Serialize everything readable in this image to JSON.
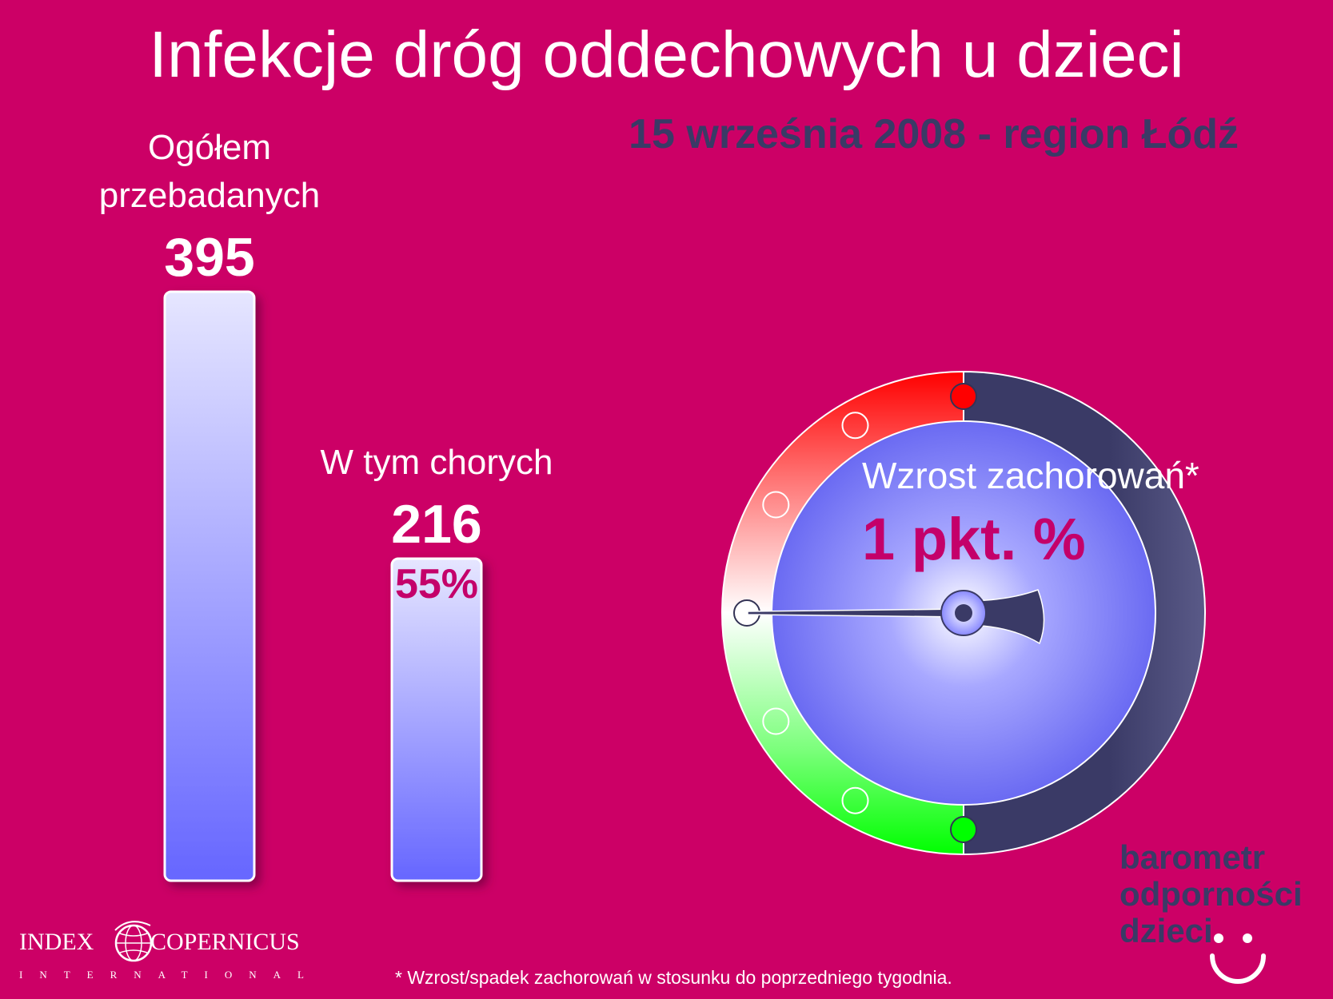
{
  "title": "Infekcje dróg oddechowych u dzieci",
  "subtitle": "15 września 2008 - region Łódź",
  "chart_data": {
    "type": "bar",
    "categories": [
      "Ogółem przebadanych",
      "W tym chorych"
    ],
    "values": [
      395,
      216
    ],
    "value_labels": [
      "395",
      "216"
    ],
    "percent_label": "55%",
    "bar_label_lines": [
      [
        "Ogółem",
        "przebadanych"
      ],
      [
        "W tym chorych"
      ]
    ],
    "ylim": [
      0,
      395
    ],
    "grid": false,
    "bar_color_top": "#e6e6ff",
    "bar_color_bottom": "#6666ff"
  },
  "gauge": {
    "label": "Wzrost zachorowań*",
    "value_label": "1 pkt. %",
    "value": 1,
    "colors": {
      "increase": "#ff0000",
      "decrease": "#00ff00",
      "neutral": "#ffffff",
      "dial": "#6666ff",
      "rim": "#3a3a66"
    }
  },
  "footnote": "* Wzrost/spadek zachorowań w stosunku do poprzedniego tygodnia.",
  "logo": {
    "left": "INDEX",
    "right": "COPERNICUS",
    "sub": "INTERNATIONAL"
  },
  "brand": {
    "line1": "barometr",
    "line2": "odporności",
    "line3": "dzieci"
  },
  "colors": {
    "background": "#cc0066",
    "title": "#ffffff",
    "subtitle": "#3a3a66",
    "accent": "#c4006a"
  }
}
